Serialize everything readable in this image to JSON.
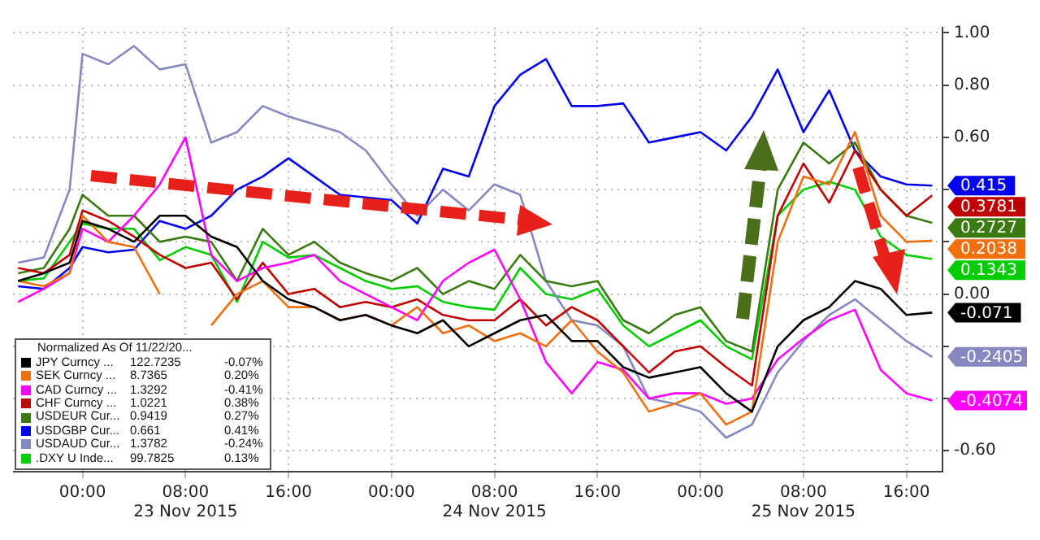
{
  "chart_data": {
    "type": "line",
    "legend_title": "Normalized As Of 11/22/20...",
    "legend": "bottom left",
    "grid": true,
    "marker": "none",
    "x": [
      "2015-11-22T19:00",
      "2015-11-22T21:00",
      "2015-11-22T23:00",
      "2015-11-23T00:00",
      "2015-11-23T02:00",
      "2015-11-23T04:00",
      "2015-11-23T06:00",
      "2015-11-23T08:00",
      "2015-11-23T10:00",
      "2015-11-23T12:00",
      "2015-11-23T14:00",
      "2015-11-23T16:00",
      "2015-11-23T18:00",
      "2015-11-23T20:00",
      "2015-11-23T22:00",
      "2015-11-24T00:00",
      "2015-11-24T02:00",
      "2015-11-24T04:00",
      "2015-11-24T06:00",
      "2015-11-24T08:00",
      "2015-11-24T10:00",
      "2015-11-24T12:00",
      "2015-11-24T14:00",
      "2015-11-24T16:00",
      "2015-11-24T18:00",
      "2015-11-24T20:00",
      "2015-11-24T22:00",
      "2015-11-25T00:00",
      "2015-11-25T02:00",
      "2015-11-25T04:00",
      "2015-11-25T06:00",
      "2015-11-25T08:00",
      "2015-11-25T10:00",
      "2015-11-25T12:00",
      "2015-11-25T14:00",
      "2015-11-25T16:00",
      "2015-11-25T18:00"
    ],
    "xlim": [
      "2015-11-22T18:36",
      "2015-11-25T18:48"
    ],
    "xticks": [
      {
        "value": "2015-11-23T00:00",
        "label": "00:00"
      },
      {
        "value": "2015-11-23T08:00",
        "label": "08:00\n23 Nov 2015"
      },
      {
        "value": "2015-11-23T16:00",
        "label": "16:00"
      },
      {
        "value": "2015-11-24T00:00",
        "label": "00:00"
      },
      {
        "value": "2015-11-24T08:00",
        "label": "08:00\n24 Nov 2015"
      },
      {
        "value": "2015-11-24T16:00",
        "label": "16:00"
      },
      {
        "value": "2015-11-25T00:00",
        "label": "00:00"
      },
      {
        "value": "2015-11-25T08:00",
        "label": "08:00\n25 Nov 2015"
      },
      {
        "value": "2015-11-25T16:00",
        "label": "16:00"
      }
    ],
    "ylim": [
      -0.68,
      1.02
    ],
    "yticks": [
      {
        "value": -0.6,
        "label": "-0.60"
      },
      {
        "value": -0.4,
        "label": null
      },
      {
        "value": -0.2,
        "label": null
      },
      {
        "value": 0,
        "label": "0.00"
      },
      {
        "value": 0.2,
        "label": null
      },
      {
        "value": 0.4,
        "label": null
      },
      {
        "value": 0.6,
        "label": "0.60"
      },
      {
        "value": 0.8,
        "label": "0.80"
      },
      {
        "value": 1,
        "label": "1.00"
      }
    ],
    "series": [
      {
        "name": "JPY Curncy ...\t122.7235\t-0.07%",
        "color": "#000000",
        "values": [
          0.05,
          0.08,
          0.12,
          0.28,
          0.25,
          0.2,
          0.3,
          0.3,
          0.22,
          0.18,
          0.05,
          -0.02,
          -0.05,
          -0.1,
          -0.08,
          -0.12,
          -0.15,
          -0.1,
          -0.2,
          -0.15,
          -0.1,
          -0.08,
          -0.18,
          -0.18,
          -0.28,
          -0.32,
          -0.3,
          -0.28,
          -0.38,
          -0.45,
          -0.2,
          -0.1,
          -0.05,
          0.05,
          0.02,
          -0.08,
          -0.071
        ],
        "value_labels": [
          null,
          null,
          null,
          null,
          null,
          null,
          null,
          null,
          null,
          null,
          null,
          null,
          null,
          null,
          null,
          null,
          null,
          null,
          null,
          null,
          null,
          null,
          null,
          null,
          null,
          null,
          null,
          null,
          null,
          null,
          null,
          null,
          null,
          null,
          null,
          null,
          "-0.071"
        ]
      },
      {
        "name": "SEK Curncy ...\t8.7365\t0.20%",
        "color": "#f07010",
        "values": [
          0.05,
          0.03,
          0.08,
          0.3,
          0.2,
          0.18,
          0.0,
          null,
          -0.12,
          0.0,
          0.05,
          -0.05,
          -0.05,
          -0.1,
          -0.08,
          -0.12,
          -0.05,
          -0.15,
          -0.12,
          -0.18,
          -0.15,
          -0.2,
          -0.1,
          -0.22,
          -0.3,
          -0.45,
          -0.42,
          -0.38,
          -0.5,
          -0.45,
          0.2,
          0.45,
          0.42,
          0.62,
          0.3,
          0.2,
          0.2038
        ],
        "value_labels": [
          null,
          null,
          null,
          null,
          null,
          null,
          null,
          null,
          null,
          null,
          null,
          null,
          null,
          null,
          null,
          null,
          null,
          null,
          null,
          null,
          null,
          null,
          null,
          null,
          null,
          null,
          null,
          null,
          null,
          null,
          null,
          null,
          null,
          null,
          null,
          null,
          "0.2038"
        ]
      },
      {
        "name": "CAD Curncy ...\t1.3292\t-0.41%",
        "color": "#ff00ff",
        "values": [
          -0.03,
          0.02,
          0.08,
          0.25,
          0.2,
          0.3,
          0.42,
          0.6,
          0.15,
          0.05,
          0.1,
          0.12,
          0.15,
          0.05,
          0.0,
          -0.05,
          -0.1,
          0.05,
          0.12,
          0.17,
          -0.02,
          -0.26,
          -0.38,
          -0.26,
          -0.29,
          -0.4,
          -0.38,
          -0.38,
          -0.42,
          -0.4,
          -0.25,
          -0.17,
          -0.1,
          -0.06,
          -0.29,
          -0.38,
          -0.4074
        ],
        "value_labels": [
          null,
          null,
          null,
          null,
          null,
          null,
          null,
          null,
          null,
          null,
          null,
          null,
          null,
          null,
          null,
          null,
          null,
          null,
          null,
          null,
          null,
          null,
          null,
          null,
          null,
          null,
          null,
          null,
          null,
          null,
          null,
          null,
          null,
          null,
          null,
          null,
          "-0.4074"
        ]
      },
      {
        "name": "CHF Curncy ...\t1.0221\t0.38%",
        "color": "#c00000",
        "values": [
          0.1,
          0.08,
          0.15,
          0.32,
          0.28,
          0.22,
          0.15,
          0.1,
          0.12,
          -0.02,
          0.12,
          0.0,
          0.02,
          -0.05,
          -0.03,
          -0.05,
          -0.02,
          -0.08,
          -0.1,
          -0.1,
          -0.02,
          -0.12,
          -0.05,
          -0.1,
          -0.2,
          -0.3,
          -0.22,
          -0.2,
          -0.28,
          -0.35,
          0.3,
          0.5,
          0.35,
          0.55,
          0.4,
          0.3,
          0.3781
        ],
        "value_labels": [
          null,
          null,
          null,
          null,
          null,
          null,
          null,
          null,
          null,
          null,
          null,
          null,
          null,
          null,
          null,
          null,
          null,
          null,
          null,
          null,
          null,
          null,
          null,
          null,
          null,
          null,
          null,
          null,
          null,
          null,
          null,
          null,
          null,
          null,
          null,
          null,
          "0.3781"
        ]
      },
      {
        "name": "USDEUR Cur...\t0.9419\t0.27%",
        "color": "#3a7a10",
        "values": [
          0.08,
          0.1,
          0.25,
          0.38,
          0.3,
          0.3,
          0.2,
          0.22,
          0.2,
          0.05,
          0.25,
          0.15,
          0.2,
          0.12,
          0.08,
          0.05,
          0.1,
          0.0,
          0.05,
          0.02,
          0.15,
          0.05,
          0.03,
          0.05,
          -0.1,
          -0.15,
          -0.08,
          -0.05,
          -0.18,
          -0.22,
          0.4,
          0.58,
          0.5,
          0.58,
          0.4,
          0.3,
          0.2727
        ],
        "value_labels": [
          null,
          null,
          null,
          null,
          null,
          null,
          null,
          null,
          null,
          null,
          null,
          null,
          null,
          null,
          null,
          null,
          null,
          null,
          null,
          null,
          null,
          null,
          null,
          null,
          null,
          null,
          null,
          null,
          null,
          null,
          null,
          null,
          null,
          null,
          null,
          null,
          "0.2727"
        ]
      },
      {
        "name": "USDGBP Cur...\t0.661\t0.41%",
        "color": "#0000ee",
        "values": [
          0.03,
          0.02,
          0.1,
          0.18,
          0.16,
          0.17,
          0.28,
          0.25,
          0.3,
          0.4,
          0.45,
          0.52,
          0.45,
          0.38,
          0.37,
          0.36,
          0.27,
          0.48,
          0.45,
          0.72,
          0.84,
          0.9,
          0.72,
          0.72,
          0.73,
          0.58,
          0.6,
          0.62,
          0.55,
          0.68,
          0.86,
          0.62,
          0.78,
          0.55,
          0.45,
          0.42,
          0.415
        ],
        "value_labels": [
          null,
          null,
          null,
          null,
          null,
          null,
          null,
          null,
          null,
          null,
          null,
          null,
          null,
          null,
          null,
          null,
          null,
          null,
          null,
          null,
          null,
          null,
          null,
          null,
          null,
          null,
          null,
          null,
          null,
          null,
          null,
          null,
          null,
          null,
          null,
          null,
          "0.415"
        ]
      },
      {
        "name": "USDAUD Cur...\t1.3782\t-0.24%",
        "color": "#8888c0",
        "values": [
          0.12,
          0.14,
          0.4,
          0.92,
          0.88,
          0.95,
          0.86,
          0.88,
          0.58,
          0.62,
          0.72,
          0.68,
          0.65,
          0.62,
          0.55,
          0.42,
          0.3,
          0.4,
          0.32,
          0.42,
          0.38,
          0.05,
          -0.1,
          -0.12,
          -0.2,
          -0.4,
          -0.42,
          -0.45,
          -0.55,
          -0.5,
          -0.3,
          -0.18,
          -0.08,
          -0.02,
          -0.1,
          -0.18,
          -0.2405
        ],
        "value_labels": [
          null,
          null,
          null,
          null,
          null,
          null,
          null,
          null,
          null,
          null,
          null,
          null,
          null,
          null,
          null,
          null,
          null,
          null,
          null,
          null,
          null,
          null,
          null,
          null,
          null,
          null,
          null,
          null,
          null,
          null,
          null,
          null,
          null,
          null,
          null,
          null,
          "-0.2405"
        ]
      },
      {
        "name": ".DXY U Inde...\t99.7825\t0.13%",
        "color": "#00cc00",
        "values": [
          0.05,
          0.06,
          0.2,
          0.27,
          0.25,
          0.25,
          0.13,
          0.18,
          0.15,
          -0.03,
          0.2,
          0.14,
          0.15,
          0.1,
          0.05,
          0.02,
          0.03,
          -0.03,
          -0.05,
          -0.06,
          0.1,
          0.0,
          -0.02,
          0.02,
          -0.12,
          -0.2,
          -0.15,
          -0.1,
          -0.2,
          -0.25,
          0.3,
          0.4,
          0.43,
          0.4,
          0.22,
          0.15,
          0.1343
        ],
        "value_labels": [
          null,
          null,
          null,
          null,
          null,
          null,
          null,
          null,
          null,
          null,
          null,
          null,
          null,
          null,
          null,
          null,
          null,
          null,
          null,
          null,
          null,
          null,
          null,
          null,
          null,
          null,
          null,
          null,
          null,
          null,
          null,
          null,
          null,
          null,
          null,
          null,
          "0.1343"
        ]
      }
    ]
  }
}
